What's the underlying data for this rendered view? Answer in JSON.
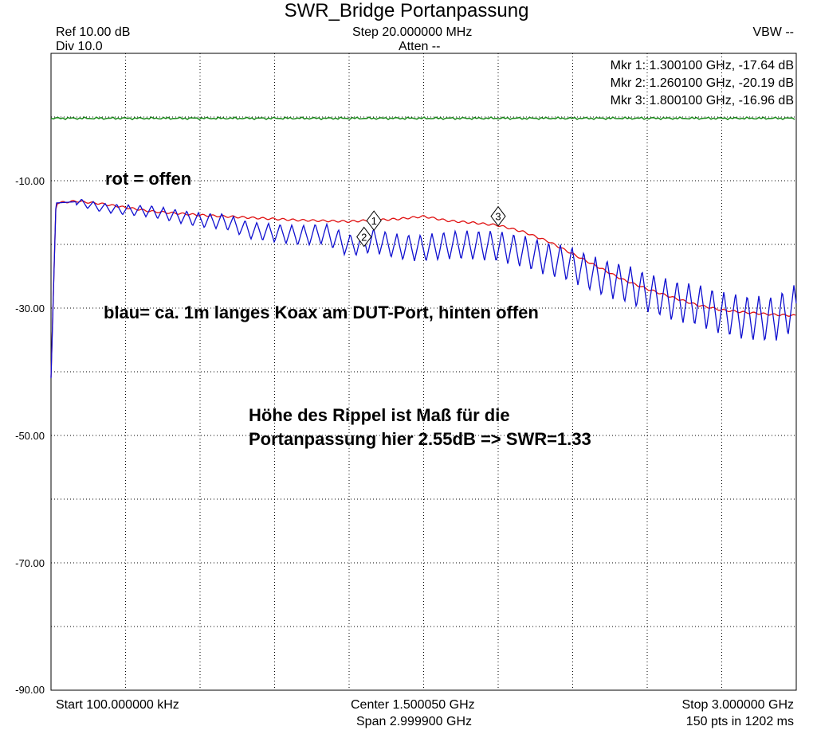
{
  "chart_data": {
    "type": "line",
    "title": "SWR_Bridge Portanpassung",
    "header": {
      "ref": "Ref 10.00 dB",
      "div": "Div 10.0",
      "step": "Step 20.000000 MHz",
      "atten": "Atten --",
      "vbw": "VBW --"
    },
    "footer": {
      "start": "Start 100.000000 kHz",
      "center": "Center 1.500050 GHz",
      "span": "Span 2.999900 GHz",
      "stop": "Stop 3.000000 GHz",
      "sweep": "150 pts in 1202 ms"
    },
    "xlim_ghz": [
      0.0001,
      3.0
    ],
    "ylim_db": [
      -90,
      10
    ],
    "y_grid_step_db": 10,
    "x_grid_divisions": 10,
    "y_tick_labels": [
      "-10.00",
      "-30.00",
      "-50.00",
      "-70.00",
      "-90.00"
    ],
    "y_tick_values": [
      -10,
      -30,
      -50,
      -70,
      -90
    ],
    "grid": true,
    "markers": [
      {
        "label": "1",
        "x_ghz": 1.3001,
        "y_db": -17.64,
        "text": "Mkr 1: 1.300100 GHz, -17.64 dB"
      },
      {
        "label": "2",
        "x_ghz": 1.2601,
        "y_db": -20.19,
        "text": "Mkr 2: 1.260100 GHz, -20.19 dB"
      },
      {
        "label": "3",
        "x_ghz": 1.8001,
        "y_db": -16.96,
        "text": "Mkr 3: 1.800100 GHz, -16.96 dB"
      }
    ],
    "annotations": {
      "rot": "rot = offen",
      "blau": "blau= ca. 1m langes Koax am DUT-Port, hinten offen",
      "hoehe_line1": "Höhe des Rippel ist Maß für die",
      "hoehe_line2": "Portanpassung hier 2.55dB => SWR=1.33"
    },
    "series": [
      {
        "color": "#1a8a1a",
        "x_ghz": [
          0.0001,
          3.0
        ],
        "y_db": [
          -0.2,
          -0.2
        ]
      },
      {
        "color": "#e01010",
        "x_ghz": [
          0.0001,
          0.02,
          0.1,
          0.2,
          0.3,
          0.4,
          0.5,
          0.6,
          0.7,
          0.8,
          0.9,
          1.0,
          1.1,
          1.2,
          1.3,
          1.4,
          1.5,
          1.6,
          1.7,
          1.8,
          1.9,
          2.0,
          2.1,
          2.2,
          2.3,
          2.4,
          2.5,
          2.6,
          2.7,
          2.8,
          2.9,
          3.0
        ],
        "y_db": [
          -41,
          -13.5,
          -13.2,
          -13.6,
          -14.2,
          -14.8,
          -15.1,
          -15.4,
          -15.6,
          -15.8,
          -16.0,
          -16.2,
          -16.3,
          -16.4,
          -16.2,
          -16.0,
          -15.6,
          -16.3,
          -16.6,
          -17.0,
          -18.0,
          -19.5,
          -21.5,
          -23.5,
          -25.5,
          -27.0,
          -28.3,
          -29.5,
          -30.3,
          -30.7,
          -31.0,
          -31.2
        ]
      },
      {
        "color": "#1010d0",
        "x_ghz": [
          0.0001,
          0.02,
          0.1,
          0.2,
          0.3,
          0.4,
          0.5,
          0.6,
          0.7,
          0.8,
          0.9,
          1.0,
          1.1,
          1.2,
          1.3,
          1.4,
          1.5,
          1.6,
          1.7,
          1.8,
          1.9,
          2.0,
          2.1,
          2.2,
          2.3,
          2.4,
          2.5,
          2.6,
          2.7,
          2.8,
          2.9,
          3.0
        ],
        "y_db": [
          -41,
          -13.5,
          -13.3,
          -14.2,
          -14.6,
          -14.8,
          -15.5,
          -16.2,
          -16.4,
          -17.8,
          -18.2,
          -18.6,
          -18.3,
          -20.2,
          -19.4,
          -20.4,
          -20.6,
          -20.1,
          -20.1,
          -20.3,
          -21.1,
          -22.3,
          -23.2,
          -25.0,
          -26.0,
          -27.5,
          -28.8,
          -29.5,
          -30.8,
          -31.5,
          -31.8,
          -30.0
        ]
      }
    ],
    "ripple": {
      "start_ghz": 0.1,
      "period_ghz": 0.047,
      "amplitude_start_db": 0.6,
      "amplitude_end_db": 3.8
    }
  }
}
